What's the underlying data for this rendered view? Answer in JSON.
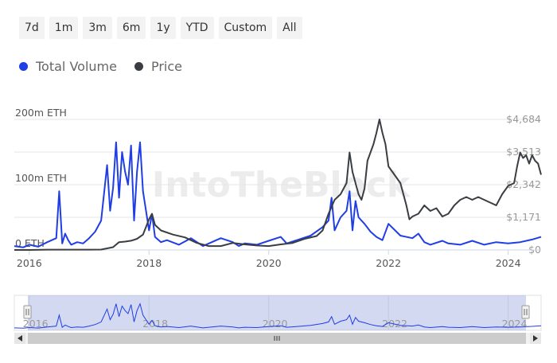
{
  "range_buttons": [
    "7d",
    "1m",
    "3m",
    "6m",
    "1y",
    "YTD",
    "Custom",
    "All"
  ],
  "colors": {
    "volume": "#1f3ee6",
    "price": "#3a3d42",
    "grid": "#e6e6e6",
    "navigator_mask": "rgba(110,130,210,0.30)"
  },
  "watermark": "IntoTheBlock",
  "chart_data": {
    "type": "line",
    "title": "",
    "xlabel": "",
    "ylabel": "",
    "x_ticks": [
      "2016",
      "2018",
      "2020",
      "2022",
      "2024"
    ],
    "x_range": [
      2015.75,
      2024.55
    ],
    "y_left": {
      "ticks": [
        "0 ETH",
        "100m ETH",
        "200m ETH"
      ],
      "range": [
        0,
        200
      ]
    },
    "y_right": {
      "ticks": [
        "$0",
        "$1,171",
        "$2,342",
        "$3,513",
        "$4,684"
      ],
      "range": [
        0,
        4684
      ]
    },
    "legend": {
      "position": "top-left",
      "entries": [
        "Total Volume",
        "Price"
      ]
    },
    "series": [
      {
        "name": "Total Volume",
        "axis": "left",
        "x": [
          2015.75,
          2015.9,
          2016.0,
          2016.15,
          2016.3,
          2016.45,
          2016.5,
          2016.55,
          2016.6,
          2016.65,
          2016.7,
          2016.8,
          2016.9,
          2017.0,
          2017.1,
          2017.2,
          2017.3,
          2017.35,
          2017.4,
          2017.45,
          2017.5,
          2017.55,
          2017.6,
          2017.65,
          2017.7,
          2017.75,
          2017.8,
          2017.85,
          2017.9,
          2017.95,
          2018.0,
          2018.05,
          2018.1,
          2018.2,
          2018.3,
          2018.5,
          2018.7,
          2018.9,
          2019.0,
          2019.2,
          2019.4,
          2019.5,
          2019.6,
          2019.8,
          2020.0,
          2020.2,
          2020.3,
          2020.5,
          2020.7,
          2020.9,
          2021.0,
          2021.05,
          2021.1,
          2021.2,
          2021.3,
          2021.35,
          2021.4,
          2021.45,
          2021.5,
          2021.6,
          2021.7,
          2021.8,
          2021.9,
          2022.0,
          2022.2,
          2022.4,
          2022.5,
          2022.6,
          2022.7,
          2022.9,
          2023.0,
          2023.2,
          2023.4,
          2023.6,
          2023.8,
          2024.0,
          2024.2,
          2024.4,
          2024.55
        ],
        "values": [
          6,
          4,
          8,
          5,
          12,
          18,
          90,
          10,
          25,
          15,
          8,
          12,
          10,
          18,
          28,
          45,
          130,
          60,
          95,
          165,
          80,
          150,
          120,
          100,
          160,
          45,
          120,
          165,
          90,
          60,
          30,
          55,
          20,
          12,
          15,
          8,
          18,
          6,
          10,
          18,
          12,
          6,
          10,
          8,
          14,
          20,
          10,
          16,
          22,
          35,
          45,
          80,
          30,
          50,
          60,
          90,
          30,
          75,
          50,
          40,
          28,
          20,
          15,
          40,
          22,
          18,
          25,
          12,
          8,
          14,
          10,
          8,
          14,
          8,
          12,
          10,
          12,
          16,
          20
        ]
      },
      {
        "name": "Price",
        "axis": "right",
        "x": [
          2015.75,
          2016.0,
          2016.3,
          2016.5,
          2016.8,
          2017.0,
          2017.2,
          2017.4,
          2017.5,
          2017.6,
          2017.7,
          2017.8,
          2017.9,
          2018.0,
          2018.05,
          2018.1,
          2018.2,
          2018.4,
          2018.6,
          2018.8,
          2019.0,
          2019.2,
          2019.4,
          2019.6,
          2019.8,
          2020.0,
          2020.2,
          2020.4,
          2020.6,
          2020.8,
          2020.9,
          2021.0,
          2021.1,
          2021.2,
          2021.3,
          2021.35,
          2021.4,
          2021.45,
          2021.5,
          2021.55,
          2021.6,
          2021.65,
          2021.7,
          2021.75,
          2021.8,
          2021.85,
          2021.9,
          2021.95,
          2022.0,
          2022.1,
          2022.2,
          2022.3,
          2022.35,
          2022.4,
          2022.5,
          2022.6,
          2022.7,
          2022.8,
          2022.9,
          2023.0,
          2023.1,
          2023.2,
          2023.3,
          2023.4,
          2023.5,
          2023.6,
          2023.7,
          2023.8,
          2023.9,
          2024.0,
          2024.1,
          2024.15,
          2024.2,
          2024.25,
          2024.3,
          2024.35,
          2024.4,
          2024.45,
          2024.5,
          2024.55
        ],
        "values": [
          1,
          1,
          10,
          12,
          10,
          10,
          15,
          100,
          280,
          300,
          330,
          400,
          550,
          1100,
          1300,
          900,
          700,
          550,
          450,
          250,
          140,
          140,
          250,
          200,
          160,
          140,
          200,
          250,
          400,
          500,
          700,
          1300,
          1800,
          2000,
          2400,
          3500,
          2800,
          2400,
          2000,
          1800,
          2200,
          3200,
          3500,
          3800,
          4200,
          4684,
          4200,
          3800,
          3000,
          2700,
          2400,
          1600,
          1100,
          1200,
          1300,
          1600,
          1400,
          1500,
          1200,
          1300,
          1600,
          1800,
          1900,
          1800,
          1900,
          1800,
          1700,
          1600,
          2000,
          2300,
          2400,
          3000,
          3500,
          3300,
          3400,
          3100,
          3400,
          3200,
          3100,
          2700
        ]
      }
    ]
  }
}
